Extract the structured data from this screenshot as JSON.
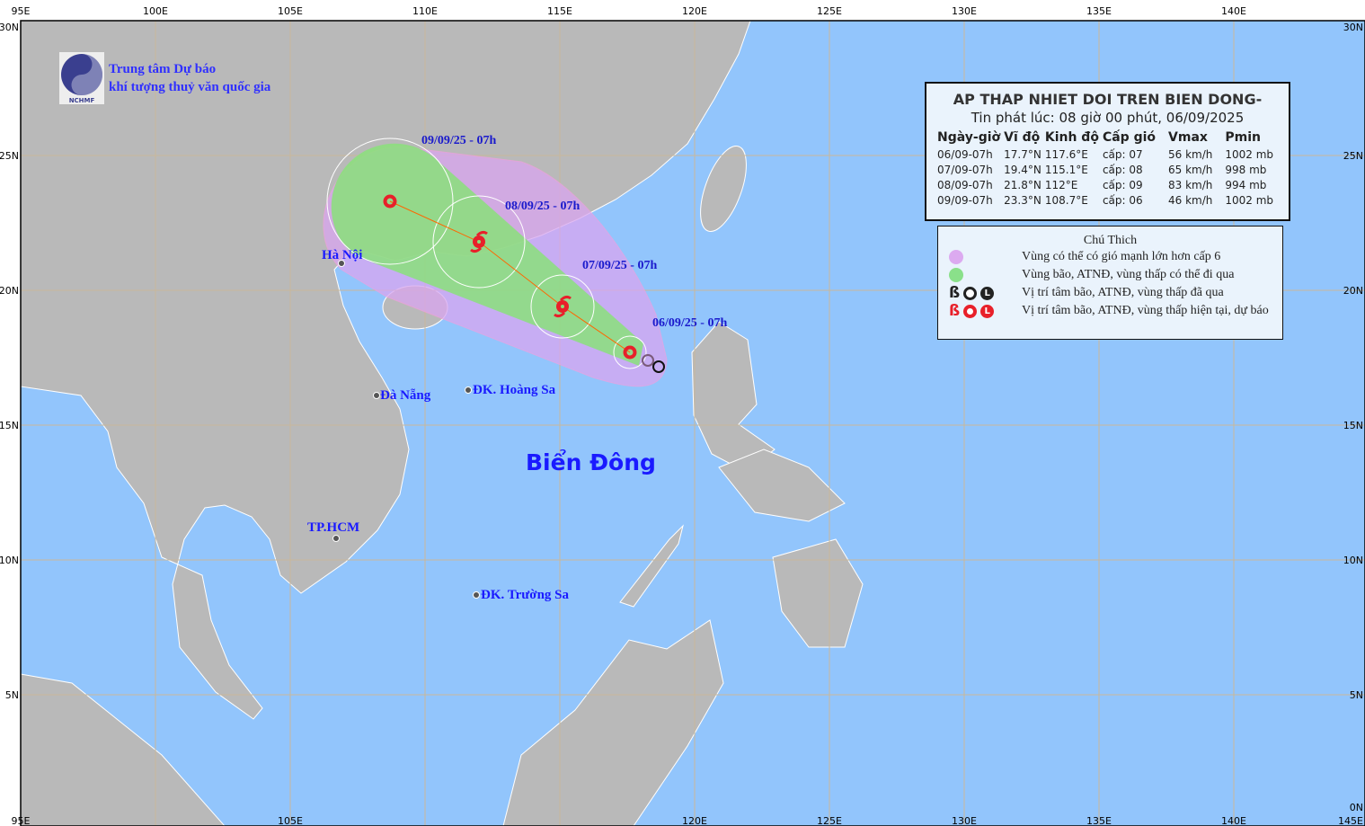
{
  "organization": {
    "line1": "Trung tâm Dự báo",
    "line2": "khí tượng thuỷ văn quốc gia",
    "logo_text": "NCHMF"
  },
  "map": {
    "lon_range": [
      95,
      145
    ],
    "lat_range": [
      0,
      30
    ],
    "top_labels": [
      "95E",
      "100E",
      "105E",
      "110E",
      "115E",
      "120E",
      "125E",
      "130E",
      "135E",
      "140E"
    ],
    "bottom_labels": [
      "95E",
      "105E",
      "120E",
      "125E",
      "130E",
      "135E",
      "140E",
      "145E"
    ],
    "left_labels": [
      "30N",
      "25N",
      "20N",
      "15N",
      "10N",
      "5N"
    ],
    "right_labels": [
      "30N",
      "25N",
      "20N",
      "15N",
      "10N",
      "5N",
      "0N"
    ],
    "colors": {
      "sea": "#92c5fc",
      "land": "#b9b9b9",
      "strong_wind_zone": "#d9a6f0",
      "storm_zone": "#8ae07a",
      "current_forecast": "#e8202a",
      "past": "#222222",
      "track": "#ff6600"
    },
    "sea_name": "Biển Đông",
    "places": [
      {
        "name": "Hà Nội",
        "lon": 106.9,
        "lat": 21.0
      },
      {
        "name": "Đà Nẵng",
        "lon": 108.2,
        "lat": 16.1
      },
      {
        "name": "ĐK. Hoàng Sa",
        "lon": 111.6,
        "lat": 16.3
      },
      {
        "name": "TP.HCM",
        "lon": 106.7,
        "lat": 10.8
      },
      {
        "name": "ĐK. Trường Sa",
        "lon": 111.9,
        "lat": 8.7
      }
    ],
    "track": [
      {
        "label": "06/09/25 - 07h",
        "lon": 117.6,
        "lat": 17.7,
        "symbol": "low-circle-icon"
      },
      {
        "label": "07/09/25 - 07h",
        "lon": 115.1,
        "lat": 19.4,
        "symbol": "storm-icon"
      },
      {
        "label": "08/09/25 - 07h",
        "lon": 112.0,
        "lat": 21.8,
        "symbol": "storm-icon"
      },
      {
        "label": "09/09/25 - 07h",
        "lon": 108.7,
        "lat": 23.3,
        "symbol": "low-circle-icon"
      }
    ]
  },
  "info": {
    "title": "AP THAP NHIET DOI TREN BIEN DONG-",
    "issued": "Tin phát lúc: 08 giờ 00 phút, 06/09/2025",
    "headers": [
      "Ngày-giờ",
      "Vĩ độ",
      "Kinh độ",
      "Cấp gió",
      "Vmax",
      "Pmin"
    ],
    "rows": [
      [
        "06/09-07h",
        "17.7°N",
        "117.6°E",
        "cấp: 07",
        "56 km/h",
        "1002 mb"
      ],
      [
        "07/09-07h",
        "19.4°N",
        "115.1°E",
        "cấp: 08",
        "65 km/h",
        "998 mb"
      ],
      [
        "08/09-07h",
        "21.8°N",
        "112°E",
        "cấp: 09",
        "83 km/h",
        "994 mb"
      ],
      [
        "09/09-07h",
        "23.3°N",
        "108.7°E",
        "cấp: 06",
        "46 km/h",
        "1002 mb"
      ]
    ]
  },
  "legend": {
    "title": "Chú Thich",
    "items": [
      "Vùng có thể có gió mạnh lớn hơn cấp 6",
      "Vùng bão, ATNĐ, vùng thấp có thể đi qua",
      "Vị trí tâm bão, ATNĐ, vùng thấp đã qua",
      "Vị trí tâm bão, ATNĐ, vùng thấp hiện tại, dự báo"
    ]
  }
}
